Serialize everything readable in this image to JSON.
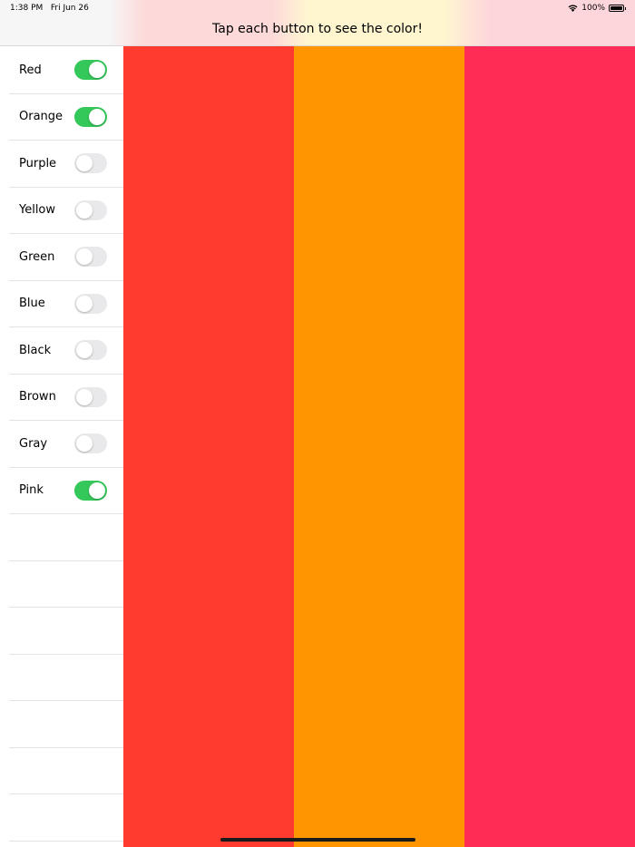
{
  "status_bar": {
    "time": "1:38 PM",
    "date": "Fri Jun 26",
    "battery": "100%",
    "wifi_icon": "wifi-icon",
    "battery_level": 1.0
  },
  "header": {
    "title": "Tap each button to see the color!"
  },
  "sidebar": {
    "items": [
      {
        "label": "Red",
        "on": true
      },
      {
        "label": "Orange",
        "on": true
      },
      {
        "label": "Purple",
        "on": false
      },
      {
        "label": "Yellow",
        "on": false
      },
      {
        "label": "Green",
        "on": false
      },
      {
        "label": "Blue",
        "on": false
      },
      {
        "label": "Black",
        "on": false
      },
      {
        "label": "Brown",
        "on": false
      },
      {
        "label": "Gray",
        "on": false
      },
      {
        "label": "Pink",
        "on": true
      }
    ],
    "empty_rows": 7
  },
  "colors": {
    "toggle_on": "#34c759",
    "panels": [
      "#ff3b30",
      "#ff9500",
      "#ff2d55"
    ]
  }
}
